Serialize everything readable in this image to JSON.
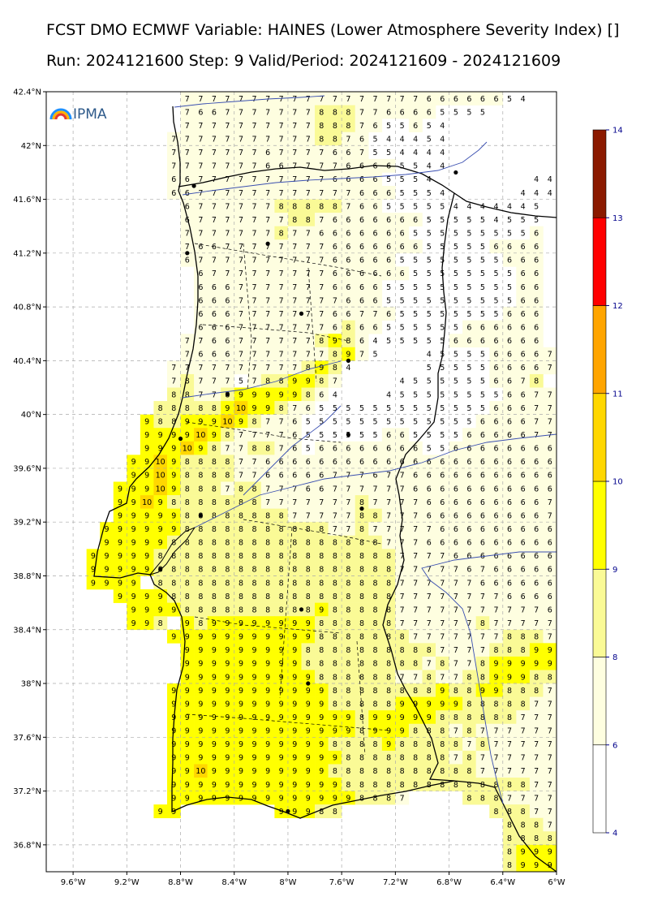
{
  "title_line1": "FCST DMO ECMWF Variable: HAINES (Lower Atmosphere Severity Index) []",
  "title_line2": "Run: 2024121600 Step: 9 Valid/Period: 2024121609 - 2024121609",
  "logo_text": "IPMA",
  "map": {
    "lon_range": [
      -9.8,
      -6.0
    ],
    "lat_range": [
      36.6,
      42.4
    ],
    "lat_ticks": [
      "42.4°N",
      "42°N",
      "41.6°N",
      "41.2°N",
      "40.8°N",
      "40.4°N",
      "40°N",
      "39.6°N",
      "39.2°N",
      "38.8°N",
      "38.4°N",
      "38°N",
      "37.6°N",
      "37.2°N",
      "36.8°N"
    ],
    "lat_values": [
      42.4,
      42.0,
      41.6,
      41.2,
      40.8,
      40.4,
      40.0,
      39.6,
      39.2,
      38.8,
      38.4,
      38.0,
      37.6,
      37.2,
      36.8
    ],
    "lon_ticks": [
      "9.6°W",
      "9.2°W",
      "8.8°W",
      "8.4°W",
      "8°W",
      "7.6°W",
      "7.2°W",
      "6.8°W",
      "6.4°W",
      "6°W"
    ],
    "lon_values": [
      -9.6,
      -9.2,
      -8.8,
      -8.4,
      -8.0,
      -7.6,
      -7.2,
      -6.8,
      -6.4,
      -6.0
    ],
    "grid_lines": true
  },
  "colorbar": {
    "labels": [
      "14",
      "13",
      "12",
      "11",
      "10",
      "9",
      "8",
      "6",
      "4"
    ],
    "values": [
      14,
      13,
      12,
      11,
      10,
      9,
      8,
      6,
      4
    ],
    "bands": [
      {
        "from": 4,
        "to": 6,
        "color": "#ffffff"
      },
      {
        "from": 6,
        "to": 8,
        "color": "#fefee0"
      },
      {
        "from": 8,
        "to": 9,
        "color": "#fafa96"
      },
      {
        "from": 9,
        "to": 10,
        "color": "#ffff00"
      },
      {
        "from": 10,
        "to": 11,
        "color": "#ffd700"
      },
      {
        "from": 11,
        "to": 12,
        "color": "#ffa500"
      },
      {
        "from": 12,
        "to": 13,
        "color": "#ff0000"
      },
      {
        "from": 13,
        "to": 14,
        "color": "#8b1a00"
      }
    ]
  },
  "grid": {
    "cell_deg": 0.1,
    "lon_start": -9.35,
    "rows": [
      {
        "lat": 42.35,
        "start": -8.75,
        "vals": "7 7 7 7 7 7 7 7 7 7 7 7 7 7 7 7 7 7 6 6 6 6 6 6 5 4"
      },
      {
        "lat": 42.25,
        "start": -8.75,
        "vals": "7 6 6 7 7 7 7 7 7 7 8 8 8 7 7 6 6 6 6 5 5 5 5"
      },
      {
        "lat": 42.15,
        "start": -8.75,
        "vals": "7 7 7 7 7 7 7 7 7 7 8 8 8 7 6 5 5 6 5 4"
      },
      {
        "lat": 42.05,
        "start": -8.85,
        "vals": "7 7 7 7 7 7 7 7 7 7 7 8 8 7 6 5 4 4 4 5 4 . . . . . . . . 4"
      },
      {
        "lat": 41.95,
        "start": -8.85,
        "vals": "7 7 7 7 7 7 7 6 7 7 7 7 6 6 7 5 5 4 4 4 4 . . . . . . . . 4"
      },
      {
        "lat": 41.85,
        "start": -8.85,
        "vals": "7 7 7 7 7 7 7 6 6 7 7 7 7 6 6 6 6 5 5 4 4 . . . . . . . . 4"
      },
      {
        "lat": 41.75,
        "start": -8.85,
        "vals": "6 6 7 7 7 7 7 7 7 7 7 7 6 6 6 6 5 5 5 4 . . . . . . . 4 4 4"
      },
      {
        "lat": 41.65,
        "start": -8.85,
        "vals": "6 6 7 7 7 7 7 7 7 7 7 7 7 7 6 6 6 5 5 5 4 . . . . . 4 4 4 5"
      },
      {
        "lat": 41.55,
        "start": -8.75,
        "vals": "6 7 7 7 7 7 7 8 8 8 8 8 7 6 6 5 5 5 5 5 4 4 4 4 4 4 5"
      },
      {
        "lat": 41.45,
        "start": -8.75,
        "vals": "6 7 7 7 7 7 7 7 8 8 7 6 6 6 6 6 6 6 5 5 5 5 5 4 5 5 5"
      },
      {
        "lat": 41.35,
        "start": -8.75,
        "vals": "7 7 7 7 7 7 7 8 7 7 6 6 6 6 6 6 6 5 5 5 5 5 5 5 5 5 6"
      },
      {
        "lat": 41.25,
        "start": -8.75,
        "vals": "7 6 6 7 7 7 7 7 7 7 7 6 6 6 6 6 6 6 5 5 5 5 5 6 6 6 6"
      },
      {
        "lat": 41.15,
        "start": -8.75,
        "vals": "6 7 7 7 7 7 7 7 7 7 7 6 6 6 6 6 5 5 5 5 5 5 5 5 6 6 6"
      },
      {
        "lat": 41.05,
        "start": -8.65,
        "vals": "6 7 7 7 7 7 7 7 7 7 6 6 6 6 6 6 5 5 5 5 5 5 5 5 6 6"
      },
      {
        "lat": 40.95,
        "start": -8.65,
        "vals": "6 6 6 7 7 7 7 7 7 7 6 6 6 6 5 5 5 5 5 5 5 5 5 5 6 6"
      },
      {
        "lat": 40.85,
        "start": -8.65,
        "vals": "6 6 6 7 7 7 7 7 7 7 7 6 6 6 5 5 5 5 5 5 5 5 5 5 6 6"
      },
      {
        "lat": 40.75,
        "start": -8.65,
        "vals": "6 6 6 7 7 7 7 7 7 7 6 6 7 7 6 5 5 5 5 5 5 5 5 6 6 6"
      },
      {
        "lat": 40.65,
        "start": -8.65,
        "vals": "6 6 6 7 7 7 7 7 7 7 6 8 6 6 5 5 5 5 5 5 6 6 6 6 6 6"
      },
      {
        "lat": 40.55,
        "start": -8.75,
        "vals": "7 7 6 6 7 7 7 7 7 7 8 9 8 6 4 5 5 5 5 5 6 6 6 6 6 6 6"
      },
      {
        "lat": 40.45,
        "start": -8.75,
        "vals": "7 6 6 6 7 7 7 7 7 7 7 8 9 7 5 . . . 4 5 5 5 5 6 6 6 6 7"
      },
      {
        "lat": 40.35,
        "start": -8.85,
        "vals": "7 7 7 7 7 7 7 7 7 7 8 9 8 4 . . . . . 5 5 5 5 5 6 6 6 6 7"
      },
      {
        "lat": 40.25,
        "start": -8.85,
        "vals": "7 8 7 7 7 5 7 8 8 9 9 8 7 . . . . 4 5 5 5 5 5 5 6 6 7 8"
      },
      {
        "lat": 40.15,
        "start": -8.85,
        "vals": "8 8 7 7 8 9 9 9 9 9 8 6 4 . . . 4 5 5 5 5 5 5 5 5 6 6 7 7"
      },
      {
        "lat": 40.05,
        "start": -8.95,
        "vals": "8 8 8 8 8 9 10 9 9 8 7 6 5 5 5 5 5 5 5 5 5 5 5 5 5 6 6 6 7 7"
      },
      {
        "lat": 39.95,
        "start": -9.05,
        "vals": "9 8 8 9 9 9 10 9 8 7 7 6 5 5 5 5 5 5 5 5 5 5 5 5 5 6 6 6 6 7 7"
      },
      {
        "lat": 39.85,
        "start": -9.05,
        "vals": "9 9 9 9 10 9 8 7 7 7 7 6 5 5 5 5 5 5 6 6 5 5 5 5 6 6 6 6 6 7 7"
      },
      {
        "lat": 39.75,
        "start": -9.05,
        "vals": "9 9 9 10 9 8 7 7 8 8 7 6 5 6 6 6 6 6 6 6 6 5 5 6 6 6 6 6 6 6 6"
      },
      {
        "lat": 39.65,
        "start": -9.15,
        "vals": "9 9 10 9 8 8 8 8 7 7 6 6 6 6 6 6 6 6 6 6 6 6 6 6 6 6 6 6 6 6 6 6"
      },
      {
        "lat": 39.55,
        "start": -9.15,
        "vals": "9 9 10 9 8 8 8 8 7 7 6 6 6 6 6 7 7 7 6 7 7 6 6 6 6 6 6 6 6 6 6 6"
      },
      {
        "lat": 39.45,
        "start": -9.25,
        "vals": "9 9 9 10 9 8 8 8 7 8 8 7 7 7 6 6 7 7 7 7 7 7 6 6 6 6 6 6 6 6 6 6 6"
      },
      {
        "lat": 39.35,
        "start": -9.25,
        "vals": "9 9 10 9 8 8 8 8 8 8 8 7 7 7 7 7 7 7 8 7 7 7 7 6 6 6 6 6 6 6 6 6 7"
      },
      {
        "lat": 39.25,
        "start": -9.25,
        "vals": "9 9 9 9 9 8 8 8 8 8 8 8 8 7 7 7 7 7 8 8 7 7 7 6 6 6 6 6 6 6 6 6 7"
      },
      {
        "lat": 39.15,
        "start": -9.35,
        "vals": "9 9 9 9 9 9 8 8 8 8 8 8 8 8 8 8 8 7 7 8 7 7 7 7 7 6 6 6 6 6 6 6 6 6"
      },
      {
        "lat": 39.05,
        "start": -9.35,
        "vals": "9 9 9 9 9 8 8 8 8 8 8 8 8 8 8 8 8 8 8 8 8 7 7 7 6 6 6 6 6 6 6 6 6 6"
      },
      {
        "lat": 38.95,
        "start": -9.45,
        "vals": "9 9 9 9 9 8 8 8 8 8 8 8 8 8 8 8 8 8 8 8 8 8 8 7 7 7 7 6 6 6 6 6 6 6 6"
      },
      {
        "lat": 38.85,
        "start": -9.45,
        "vals": "9 9 9 9 9 8 8 8 8 8 8 8 8 8 8 8 8 8 8 8 8 8 8 7 7 7 7 7 6 7 6 6 6 6 6"
      },
      {
        "lat": 38.75,
        "start": -9.45,
        "vals": "9 9 9 9 . 8 8 8 8 8 8 8 8 8 8 8 8 8 8 8 8 8 8 7 7 7 7 7 7 6 6 6 6 6 6"
      },
      {
        "lat": 38.65,
        "start": -9.25,
        "vals": "9 9 9 9 8 8 8 8 8 8 8 8 8 8 8 8 8 8 8 8 8 7 7 7 7 7 7 7 7 6 6 6 6"
      },
      {
        "lat": 38.55,
        "start": -9.15,
        "vals": "9 9 9 9 8 8 8 8 8 8 8 8 8 8 9 8 8 8 8 8 7 7 7 7 7 7 7 7 7 7 7 6"
      },
      {
        "lat": 38.45,
        "start": -9.15,
        "vals": "9 9 8 . 9 8 9 9 9 9 9 9 9 9 8 8 8 8 8 8 7 7 7 7 7 7 8 7 7 7 7 7"
      },
      {
        "lat": 38.35,
        "start": -8.85,
        "vals": "9 9 9 9 9 9 9 9 9 9 9 8 8 8 8 8 8 8 7 7 7 7 7 7 7 8 8 8 7 7"
      },
      {
        "lat": 38.25,
        "start": -8.75,
        "vals": "9 9 9 9 9 9 9 9 9 8 8 8 8 8 8 8 8 8 8 7 7 7 7 8 8 8 9 9 8 7"
      },
      {
        "lat": 38.15,
        "start": -8.75,
        "vals": "9 9 9 9 9 9 9 9 9 8 8 8 8 8 8 8 8 8 7 8 7 7 8 9 9 9 9 9 8 7"
      },
      {
        "lat": 38.05,
        "start": -8.75,
        "vals": "9 9 9 9 9 9 9 9 9 9 8 8 8 8 8 8 7 7 8 7 7 8 8 9 9 9 8 8 8 7"
      },
      {
        "lat": 37.95,
        "start": -8.85,
        "vals": "9 9 9 9 9 9 9 9 9 9 9 9 8 8 8 8 8 8 8 8 9 8 8 9 9 8 8 8 7 7 7"
      },
      {
        "lat": 37.85,
        "start": -8.85,
        "vals": "9 9 9 9 9 9 9 9 9 9 9 9 8 8 8 8 8 9 9 9 9 9 8 8 8 8 8 7 7 7 7"
      },
      {
        "lat": 37.75,
        "start": -8.85,
        "vals": "9 9 9 9 9 9 9 9 9 9 9 9 9 9 8 9 9 9 9 9 8 8 8 8 8 8 7 7 7 7 7"
      },
      {
        "lat": 37.65,
        "start": -8.85,
        "vals": "9 9 9 9 9 9 9 9 9 9 9 9 9 9 8 9 9 9 8 8 8 7 8 7 7 7 7 7 7 7 7"
      },
      {
        "lat": 37.55,
        "start": -8.85,
        "vals": "9 9 9 9 9 9 9 9 9 9 9 9 8 8 8 8 9 8 8 8 8 8 7 8 7 7 7 7 7 7 7"
      },
      {
        "lat": 37.45,
        "start": -8.85,
        "vals": "9 9 9 9 9 9 9 9 9 9 9 9 9 8 8 8 8 8 8 8 8 7 8 7 7 7 7 7 7 7 7"
      },
      {
        "lat": 37.35,
        "start": -8.85,
        "vals": "9 9 10 9 9 9 9 9 9 9 9 9 8 8 8 8 8 8 8 8 8 8 8 7 7 7 7 7 7 7 7"
      },
      {
        "lat": 37.25,
        "start": -8.85,
        "vals": "9 9 9 9 9 9 9 9 9 9 9 9 9 8 8 8 8 8 8 8 8 8 8 8 8 8 8 7 7 7 7"
      },
      {
        "lat": 37.15,
        "start": -8.85,
        "vals": "9 9 9 9 9 9 9 9 9 9 9 9 9 9 8 8 8 7 . . . . 8 8 8 7 7 7 7 7 7"
      },
      {
        "lat": 37.05,
        "start": -8.95,
        "vals": "9 9 . . . . . . . 9 9 9 8 8 . . . . . . . . . . . 8 8 8 7 7 7 7"
      },
      {
        "lat": 36.95,
        "start": -6.35,
        "vals": "8 8 8 7 7"
      },
      {
        "lat": 36.85,
        "start": -6.35,
        "vals": "8 8 8 8 8"
      },
      {
        "lat": 36.75,
        "start": -6.35,
        "vals": "8 9 9 9 9"
      },
      {
        "lat": 36.65,
        "start": -6.35,
        "vals": "8 9 9 9 9"
      }
    ]
  }
}
